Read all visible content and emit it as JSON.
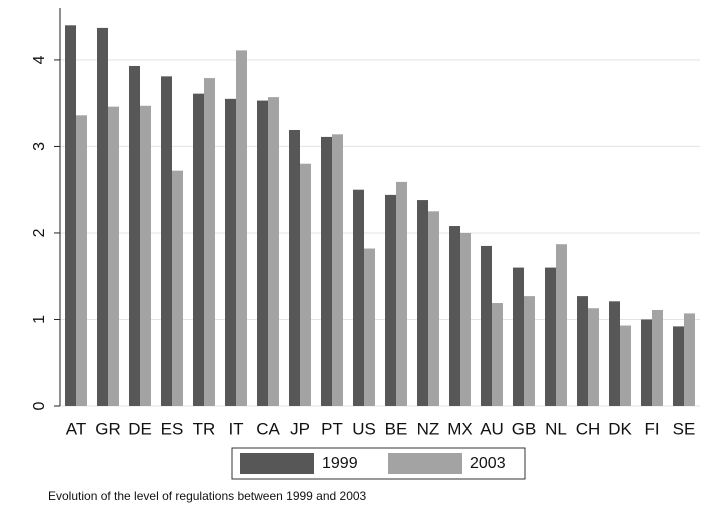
{
  "chart_data": {
    "type": "bar",
    "note": "Evolution of the level of regulations between 1999 and 2003",
    "categories": [
      "AT",
      "GR",
      "DE",
      "ES",
      "TR",
      "IT",
      "CA",
      "JP",
      "PT",
      "US",
      "BE",
      "NZ",
      "MX",
      "AU",
      "GB",
      "NL",
      "CH",
      "DK",
      "FI",
      "SE"
    ],
    "series": [
      {
        "name": "1999",
        "color": "#575757",
        "values": [
          4.4,
          4.37,
          3.93,
          3.81,
          3.61,
          3.55,
          3.53,
          3.19,
          3.11,
          2.5,
          2.44,
          2.38,
          2.08,
          1.85,
          1.6,
          1.6,
          1.27,
          1.21,
          1.0,
          0.92
        ]
      },
      {
        "name": "2003",
        "color": "#a3a3a3",
        "values": [
          3.36,
          3.46,
          3.47,
          2.72,
          3.79,
          4.11,
          3.57,
          2.8,
          3.14,
          1.82,
          2.59,
          2.25,
          2.0,
          1.19,
          1.27,
          1.87,
          1.13,
          0.93,
          1.11,
          1.07
        ]
      }
    ],
    "ylim": [
      0,
      4.6
    ],
    "yticks": [
      0,
      1,
      2,
      3,
      4
    ],
    "grid": true,
    "legend": "bottom"
  }
}
